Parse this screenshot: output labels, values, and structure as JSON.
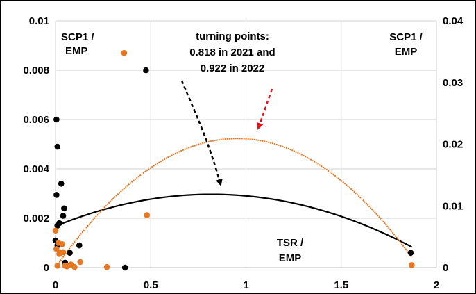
{
  "chart_data": {
    "type": "scatter",
    "title": "",
    "xlabel": "",
    "ylabel": "",
    "xlim": [
      0,
      2
    ],
    "ylim_left": [
      0,
      0.01
    ],
    "ylim_right": [
      0,
      0.04
    ],
    "grid": true,
    "x_ticks": [
      "0",
      "0.5",
      "1",
      "1.5",
      "2"
    ],
    "y_left_ticks": [
      "0",
      "0.002",
      "0.004",
      "0.006",
      "0.008",
      "0.01"
    ],
    "y_right_ticks": [
      "0",
      "0.01",
      "0.02",
      "0.03",
      "0.04"
    ],
    "colors": {
      "black_series": "#000000",
      "orange_series": "#E87722",
      "red_arrow": "#E8141B"
    },
    "series": [
      {
        "axis": "left",
        "color": "#000000",
        "points": [
          [
            0.005,
            0.006
          ],
          [
            0.01,
            0.0049
          ],
          [
            0.005,
            0.00295
          ],
          [
            0.03,
            0.0034
          ],
          [
            0.045,
            0.0024
          ],
          [
            0.04,
            0.0021
          ],
          [
            0.02,
            0.0018
          ],
          [
            0.01,
            0.0017
          ],
          [
            0.0,
            0.0011
          ],
          [
            0.01,
            0.0009
          ],
          [
            0.05,
            0.0002
          ],
          [
            0.075,
            0.0006
          ],
          [
            0.125,
            0.0009
          ],
          [
            0.365,
            0.0
          ],
          [
            0.475,
            0.008
          ],
          [
            1.865,
            0.0006
          ]
        ],
        "trend": [
          0.001677,
          0.00316,
          -0.00193
        ]
      },
      {
        "axis": "right",
        "color": "#E87722",
        "points": [
          [
            0.0,
            0.006
          ],
          [
            0.005,
            0.003
          ],
          [
            0.015,
            0.004
          ],
          [
            0.02,
            0.0022
          ],
          [
            0.025,
            0.0024
          ],
          [
            0.035,
            0.0038
          ],
          [
            0.04,
            0.0025
          ],
          [
            0.05,
            0.0003
          ],
          [
            0.06,
            0.0002
          ],
          [
            0.08,
            0.0005
          ],
          [
            0.1,
            0.0001
          ],
          [
            0.13,
            0.0009
          ],
          [
            0.01,
            0.0003
          ],
          [
            0.27,
            0.0001
          ],
          [
            0.36,
            0.0348
          ],
          [
            0.48,
            0.0085
          ],
          [
            1.87,
            0.0004
          ]
        ],
        "trend": [
          0.0,
          0.04384,
          -0.02296
        ]
      }
    ],
    "annotations": {
      "left_axis_label": [
        "SCP1 /",
        "EMP"
      ],
      "right_axis_label": [
        "SCP1 /",
        "EMP"
      ],
      "x_axis_label": [
        "TSR /",
        "EMP"
      ],
      "turning_points": [
        "turning points:",
        "0.818 in 2021 and",
        "0.922 in 2022"
      ]
    }
  }
}
